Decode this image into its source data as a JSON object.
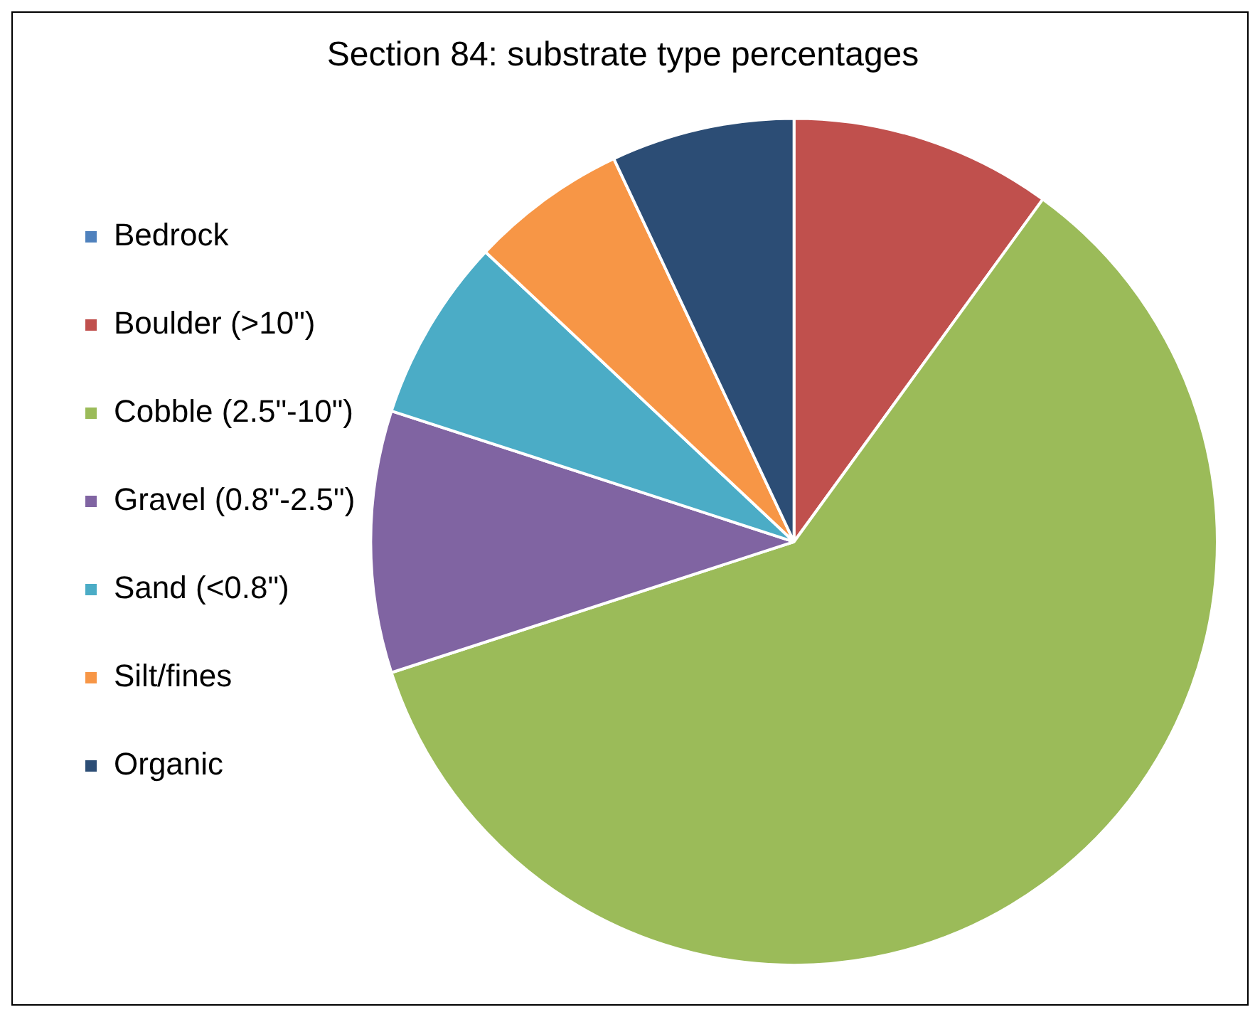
{
  "chart_data": {
    "type": "pie",
    "title": "Section 84: substrate type percentages",
    "categories": [
      "Bedrock",
      "Boulder (>10\")",
      "Cobble (2.5\"-10\")",
      "Gravel (0.8\"-2.5\")",
      "Sand (<0.8\")",
      "Silt/fines",
      "Organic"
    ],
    "values": [
      0,
      10,
      60,
      10,
      7,
      6,
      7
    ],
    "colors": [
      "#4f81bd",
      "#c0504d",
      "#9bbb59",
      "#8064a2",
      "#4bacc6",
      "#f79646",
      "#2c4d75"
    ],
    "legend": "left"
  }
}
